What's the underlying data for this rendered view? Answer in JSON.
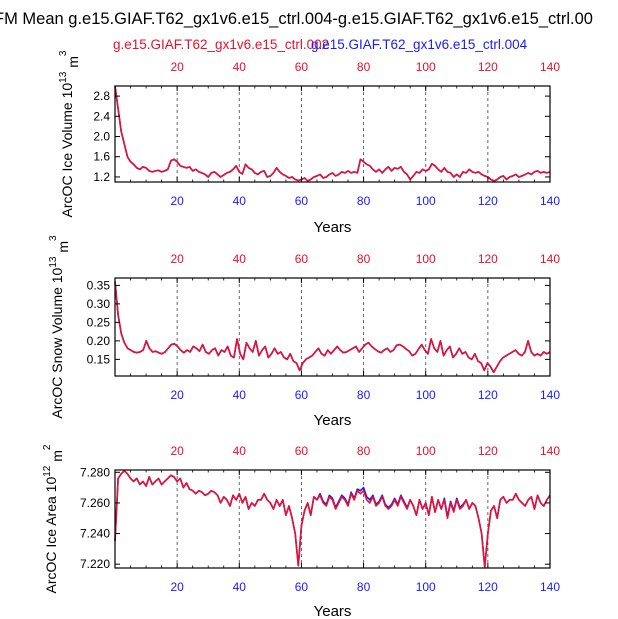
{
  "header": {
    "title": "FM Mean g.e15.GIAF.T62_gx1v6.e15_ctrl.004-g.e15.GIAF.T62_gx1v6.e15_ctrl.00",
    "legend_red": "g.e15.GIAF.T62_gx1v6.e15_ctrl.002",
    "legend_blue": "g.e15.GIAF.T62_gx1v6.e15_ctrl.004"
  },
  "colors": {
    "red": "#e8112d",
    "blue": "#1a1aff",
    "purple": "#a0166e",
    "axis": "#000000",
    "grid": "#555555"
  },
  "chart_data": [
    {
      "type": "line",
      "title": "",
      "xlabel": "Years",
      "ylabel_main": "ArcOC Ice Volume 10",
      "ylabel_exp": "13",
      "ylabel_unit": " m",
      "ylabel_unit_exp": "3",
      "xlim": [
        0,
        140
      ],
      "ylim": [
        1.1,
        3.0
      ],
      "yticks": [
        1.2,
        1.6,
        2.0,
        2.4,
        2.8
      ],
      "ytick_labels": [
        "1.2",
        "1.6",
        "2.0",
        "2.4",
        "2.8"
      ],
      "xticks": [
        20,
        40,
        60,
        80,
        100,
        120,
        140
      ],
      "xtick_labels": [
        "20",
        "40",
        "60",
        "80",
        "100",
        "120",
        "140"
      ],
      "vlines": [
        20,
        40,
        60,
        80,
        100,
        120
      ],
      "series": [
        {
          "name": "g.e15.GIAF.T62_gx1v6.e15_ctrl.002",
          "color": "#e8112d",
          "values": [
            3.0,
            2.55,
            2.1,
            1.85,
            1.6,
            1.5,
            1.45,
            1.38,
            1.35,
            1.4,
            1.38,
            1.32,
            1.3,
            1.32,
            1.33,
            1.3,
            1.32,
            1.35,
            1.52,
            1.55,
            1.5,
            1.42,
            1.4,
            1.38,
            1.4,
            1.32,
            1.35,
            1.3,
            1.28,
            1.25,
            1.2,
            1.28,
            1.3,
            1.25,
            1.2,
            1.24,
            1.28,
            1.3,
            1.35,
            1.42,
            1.3,
            1.26,
            1.45,
            1.38,
            1.35,
            1.28,
            1.25,
            1.3,
            1.32,
            1.2,
            1.22,
            1.28,
            1.38,
            1.3,
            1.25,
            1.22,
            1.18,
            1.2,
            1.15,
            1.13,
            1.15,
            1.18,
            1.12,
            1.15,
            1.2,
            1.22,
            1.25,
            1.18,
            1.2,
            1.25,
            1.28,
            1.22,
            1.25,
            1.3,
            1.28,
            1.32,
            1.28,
            1.3,
            1.28,
            1.55,
            1.5,
            1.45,
            1.42,
            1.35,
            1.3,
            1.35,
            1.28,
            1.35,
            1.4,
            1.32,
            1.38,
            1.36,
            1.4,
            1.3,
            1.25,
            1.15,
            1.22,
            1.3,
            1.28,
            1.35,
            1.32,
            1.35,
            1.46,
            1.42,
            1.35,
            1.3,
            1.38,
            1.3,
            1.28,
            1.2,
            1.25,
            1.2,
            1.3,
            1.28,
            1.35,
            1.3,
            1.28,
            1.3,
            1.25,
            1.22,
            1.2,
            1.15,
            1.12,
            1.15,
            1.2,
            1.22,
            1.15,
            1.2,
            1.22,
            1.25,
            1.2,
            1.22,
            1.25,
            1.28,
            1.25,
            1.3,
            1.32,
            1.28,
            1.3,
            1.28,
            1.3
          ]
        },
        {
          "name": "g.e15.GIAF.T62_gx1v6.e15_ctrl.004",
          "color": "#1a1aff",
          "values": [
            3.0,
            2.55,
            2.1,
            1.85,
            1.6,
            1.5,
            1.45,
            1.38,
            1.35,
            1.4,
            1.38,
            1.32,
            1.3,
            1.32,
            1.33,
            1.3,
            1.32,
            1.35,
            1.52,
            1.55,
            1.5,
            1.42,
            1.4,
            1.38,
            1.4,
            1.32,
            1.35,
            1.3,
            1.28,
            1.25,
            1.2,
            1.28,
            1.3,
            1.25,
            1.2,
            1.24,
            1.28,
            1.3,
            1.35,
            1.42,
            1.3,
            1.26,
            1.45,
            1.38,
            1.35,
            1.28,
            1.25,
            1.3,
            1.32,
            1.2,
            1.22,
            1.28,
            1.38,
            1.3,
            1.25,
            1.22,
            1.18,
            1.2,
            1.15,
            1.13,
            1.15,
            1.18,
            1.12,
            1.15,
            1.2,
            1.22,
            1.25,
            1.18,
            1.2,
            1.25,
            1.28,
            1.22,
            1.25,
            1.3,
            1.28,
            1.32,
            1.28,
            1.3,
            1.28,
            1.55,
            1.5,
            1.45,
            1.42,
            1.35,
            1.3,
            1.35,
            1.28,
            1.35,
            1.4,
            1.32,
            1.38,
            1.36,
            1.4,
            1.3,
            1.25,
            1.15,
            1.22,
            1.3,
            1.28,
            1.35,
            1.32,
            1.35,
            1.46,
            1.42,
            1.35,
            1.3,
            1.38,
            1.3,
            1.28,
            1.2,
            1.25,
            1.2,
            1.3,
            1.28,
            1.35,
            1.3,
            1.28,
            1.3,
            1.25,
            1.22,
            1.2,
            1.15,
            1.12,
            1.15,
            1.2,
            1.22,
            1.15,
            1.2,
            1.22,
            1.25,
            1.2,
            1.22,
            1.25,
            1.28,
            1.25,
            1.3,
            1.32,
            1.28,
            1.3,
            1.28,
            1.3
          ]
        }
      ]
    },
    {
      "type": "line",
      "title": "",
      "xlabel": "Years",
      "ylabel_main": "ArcOC Snow Volume 10",
      "ylabel_exp": "13",
      "ylabel_unit": " m",
      "ylabel_unit_exp": "3",
      "xlim": [
        0,
        140
      ],
      "ylim": [
        0.105,
        0.37
      ],
      "yticks": [
        0.15,
        0.2,
        0.25,
        0.3,
        0.35
      ],
      "ytick_labels": [
        "0.15",
        "0.20",
        "0.25",
        "0.30",
        "0.35"
      ],
      "xticks": [
        20,
        40,
        60,
        80,
        100,
        120,
        140
      ],
      "xtick_labels": [
        "20",
        "40",
        "60",
        "80",
        "100",
        "120",
        "140"
      ],
      "vlines": [
        20,
        40,
        60,
        80,
        100,
        120
      ],
      "series": [
        {
          "name": "g.e15.GIAF.T62_gx1v6.e15_ctrl.002",
          "color": "#e8112d",
          "values": [
            0.36,
            0.27,
            0.22,
            0.195,
            0.18,
            0.175,
            0.17,
            0.168,
            0.17,
            0.175,
            0.2,
            0.18,
            0.17,
            0.172,
            0.168,
            0.165,
            0.17,
            0.18,
            0.19,
            0.192,
            0.185,
            0.175,
            0.168,
            0.175,
            0.17,
            0.185,
            0.18,
            0.172,
            0.19,
            0.17,
            0.165,
            0.175,
            0.18,
            0.16,
            0.175,
            0.17,
            0.185,
            0.16,
            0.155,
            0.205,
            0.165,
            0.15,
            0.195,
            0.18,
            0.17,
            0.2,
            0.16,
            0.175,
            0.185,
            0.155,
            0.165,
            0.18,
            0.165,
            0.17,
            0.155,
            0.15,
            0.165,
            0.145,
            0.14,
            0.12,
            0.14,
            0.15,
            0.155,
            0.16,
            0.17,
            0.18,
            0.165,
            0.16,
            0.175,
            0.165,
            0.175,
            0.185,
            0.175,
            0.168,
            0.17,
            0.175,
            0.18,
            0.185,
            0.17,
            0.18,
            0.19,
            0.195,
            0.185,
            0.178,
            0.172,
            0.168,
            0.175,
            0.18,
            0.17,
            0.175,
            0.188,
            0.19,
            0.185,
            0.178,
            0.172,
            0.16,
            0.165,
            0.178,
            0.19,
            0.175,
            0.165,
            0.205,
            0.18,
            0.17,
            0.2,
            0.16,
            0.175,
            0.185,
            0.155,
            0.165,
            0.18,
            0.165,
            0.17,
            0.155,
            0.15,
            0.165,
            0.145,
            0.14,
            0.12,
            0.14,
            0.13,
            0.115,
            0.13,
            0.145,
            0.155,
            0.16,
            0.165,
            0.17,
            0.175,
            0.165,
            0.16,
            0.17,
            0.2,
            0.17,
            0.16,
            0.165,
            0.16,
            0.17,
            0.165,
            0.17
          ]
        },
        {
          "name": "g.e15.GIAF.T62_gx1v6.e15_ctrl.004",
          "color": "#1a1aff",
          "values": [
            0.36,
            0.27,
            0.22,
            0.195,
            0.18,
            0.175,
            0.17,
            0.168,
            0.17,
            0.175,
            0.2,
            0.18,
            0.17,
            0.172,
            0.168,
            0.165,
            0.17,
            0.18,
            0.19,
            0.192,
            0.185,
            0.175,
            0.168,
            0.175,
            0.17,
            0.185,
            0.18,
            0.172,
            0.19,
            0.17,
            0.165,
            0.175,
            0.18,
            0.16,
            0.175,
            0.17,
            0.185,
            0.16,
            0.155,
            0.205,
            0.165,
            0.15,
            0.195,
            0.18,
            0.17,
            0.2,
            0.16,
            0.175,
            0.185,
            0.155,
            0.165,
            0.18,
            0.165,
            0.17,
            0.155,
            0.15,
            0.165,
            0.145,
            0.14,
            0.12,
            0.14,
            0.15,
            0.155,
            0.16,
            0.17,
            0.18,
            0.165,
            0.16,
            0.175,
            0.165,
            0.175,
            0.185,
            0.175,
            0.168,
            0.17,
            0.175,
            0.18,
            0.185,
            0.17,
            0.18,
            0.19,
            0.195,
            0.185,
            0.178,
            0.172,
            0.168,
            0.175,
            0.18,
            0.17,
            0.175,
            0.188,
            0.19,
            0.185,
            0.178,
            0.172,
            0.16,
            0.165,
            0.178,
            0.19,
            0.175,
            0.165,
            0.205,
            0.18,
            0.17,
            0.2,
            0.16,
            0.175,
            0.185,
            0.155,
            0.165,
            0.18,
            0.165,
            0.17,
            0.155,
            0.15,
            0.165,
            0.145,
            0.14,
            0.12,
            0.14,
            0.13,
            0.115,
            0.13,
            0.145,
            0.155,
            0.16,
            0.165,
            0.17,
            0.175,
            0.165,
            0.16,
            0.17,
            0.2,
            0.17,
            0.16,
            0.165,
            0.16,
            0.17,
            0.165,
            0.17
          ]
        }
      ]
    },
    {
      "type": "line",
      "title": "",
      "xlabel": "Years",
      "ylabel_main": "ArcOC Ice Area 10",
      "ylabel_exp": "12",
      "ylabel_unit": " m",
      "ylabel_unit_exp": "2",
      "xlim": [
        0,
        140
      ],
      "ylim": [
        7.2175,
        7.2815
      ],
      "yticks": [
        7.22,
        7.24,
        7.26,
        7.28
      ],
      "ytick_labels": [
        "7.220",
        "7.240",
        "7.260",
        "7.280"
      ],
      "xticks": [
        20,
        40,
        60,
        80,
        100,
        120,
        140
      ],
      "xtick_labels": [
        "20",
        "40",
        "60",
        "80",
        "100",
        "120",
        "140"
      ],
      "vlines": [
        20,
        40,
        60,
        80,
        100,
        120
      ],
      "series": [
        {
          "name": "g.e15.GIAF.T62_gx1v6.e15_ctrl.002",
          "color": "#e8112d",
          "values": [
            7.235,
            7.276,
            7.279,
            7.281,
            7.279,
            7.276,
            7.274,
            7.276,
            7.272,
            7.274,
            7.271,
            7.277,
            7.272,
            7.274,
            7.276,
            7.272,
            7.274,
            7.276,
            7.278,
            7.277,
            7.274,
            7.276,
            7.27,
            7.273,
            7.269,
            7.268,
            7.266,
            7.268,
            7.267,
            7.265,
            7.266,
            7.268,
            7.267,
            7.265,
            7.26,
            7.264,
            7.262,
            7.258,
            7.265,
            7.262,
            7.266,
            7.26,
            7.264,
            7.256,
            7.26,
            7.258,
            7.262,
            7.262,
            7.266,
            7.262,
            7.26,
            7.256,
            7.262,
            7.258,
            7.262,
            7.252,
            7.258,
            7.25,
            7.24,
            7.219,
            7.245,
            7.255,
            7.26,
            7.252,
            7.264,
            7.262,
            7.265,
            7.26,
            7.258,
            7.264,
            7.262,
            7.256,
            7.26,
            7.264,
            7.262,
            7.258,
            7.266,
            7.262,
            7.268,
            7.266,
            7.268,
            7.262,
            7.26,
            7.264,
            7.258,
            7.26,
            7.264,
            7.258,
            7.256,
            7.258,
            7.262,
            7.258,
            7.264,
            7.26,
            7.256,
            7.262,
            7.258,
            7.252,
            7.262,
            7.256,
            7.26,
            7.252,
            7.264,
            7.254,
            7.262,
            7.256,
            7.262,
            7.25,
            7.26,
            7.254,
            7.262,
            7.256,
            7.258,
            7.262,
            7.256,
            7.26,
            7.258,
            7.25,
            7.24,
            7.218,
            7.24,
            7.255,
            7.258,
            7.25,
            7.262,
            7.264,
            7.26,
            7.262,
            7.262,
            7.266,
            7.262,
            7.26,
            7.258,
            7.262,
            7.264,
            7.256,
            7.265,
            7.26,
            7.258,
            7.262,
            7.265
          ]
        },
        {
          "name": "g.e15.GIAF.T62_gx1v6.e15_ctrl.004",
          "color": "#1a1aff",
          "values": [
            7.235,
            7.276,
            7.279,
            7.281,
            7.279,
            7.276,
            7.274,
            7.276,
            7.272,
            7.274,
            7.271,
            7.277,
            7.272,
            7.274,
            7.276,
            7.272,
            7.274,
            7.276,
            7.278,
            7.277,
            7.274,
            7.276,
            7.27,
            7.273,
            7.269,
            7.268,
            7.266,
            7.268,
            7.267,
            7.265,
            7.266,
            7.268,
            7.267,
            7.265,
            7.26,
            7.264,
            7.262,
            7.258,
            7.265,
            7.262,
            7.266,
            7.26,
            7.264,
            7.256,
            7.26,
            7.258,
            7.262,
            7.262,
            7.266,
            7.262,
            7.26,
            7.256,
            7.262,
            7.258,
            7.262,
            7.252,
            7.258,
            7.25,
            7.24,
            7.219,
            7.245,
            7.255,
            7.26,
            7.252,
            7.264,
            7.262,
            7.266,
            7.261,
            7.259,
            7.265,
            7.263,
            7.257,
            7.261,
            7.265,
            7.263,
            7.259,
            7.267,
            7.263,
            7.269,
            7.268,
            7.27,
            7.264,
            7.262,
            7.265,
            7.259,
            7.261,
            7.265,
            7.259,
            7.257,
            7.259,
            7.263,
            7.259,
            7.265,
            7.261,
            7.257,
            7.262,
            7.258,
            7.252,
            7.262,
            7.256,
            7.26,
            7.252,
            7.264,
            7.254,
            7.262,
            7.256,
            7.263,
            7.251,
            7.261,
            7.255,
            7.263,
            7.257,
            7.259,
            7.262,
            7.256,
            7.26,
            7.258,
            7.25,
            7.24,
            7.218,
            7.24,
            7.255,
            7.258,
            7.25,
            7.262,
            7.264,
            7.26,
            7.262,
            7.262,
            7.266,
            7.262,
            7.26,
            7.258,
            7.262,
            7.264,
            7.256,
            7.265,
            7.26,
            7.258,
            7.262,
            7.265
          ]
        }
      ]
    }
  ]
}
